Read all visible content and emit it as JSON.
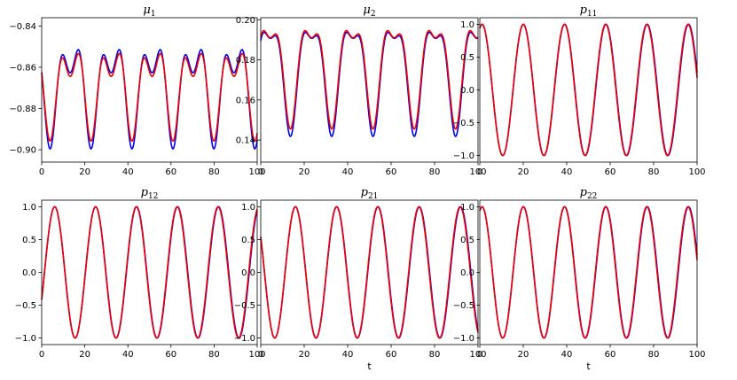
{
  "colors": {
    "series_blue": "#0000ee",
    "series_red": "#ee0000"
  },
  "chart_data": [
    {
      "type": "line",
      "title": "μ1",
      "title_main": "μ",
      "title_sub": "1",
      "xlabel": "",
      "xlim": [
        0,
        100
      ],
      "ylim": [
        -0.906,
        -0.836
      ],
      "xticks": [
        0,
        20,
        40,
        60,
        80,
        100
      ],
      "yticks": [
        -0.9,
        -0.88,
        -0.86,
        -0.84
      ],
      "ytick_labels": [
        "−0.90",
        "−0.88",
        "−0.86",
        "−0.84"
      ],
      "model": {
        "kind": "sum",
        "c": -0.8686,
        "a1": 0.0185,
        "p1": 19.0,
        "ph1": 1.8,
        "a2": 0.0125,
        "p2": 9.5,
        "ph2": 0.6
      },
      "series": [
        {
          "color": "#0000ee",
          "amp_scale": [
            1.0,
            1.0
          ],
          "drift": 0.0
        },
        {
          "color": "#ee0000",
          "amp_scale": [
            0.85,
            0.92
          ],
          "drift": 0.0
        }
      ]
    },
    {
      "type": "line",
      "title": "μ2",
      "title_main": "μ",
      "title_sub": "2",
      "xlabel": "",
      "xlim": [
        0,
        100
      ],
      "ylim": [
        0.129,
        0.201
      ],
      "xticks": [
        0,
        20,
        40,
        60,
        80,
        100
      ],
      "yticks": [
        0.14,
        0.16,
        0.18,
        0.2
      ],
      "ytick_labels": [
        "0.14",
        "0.16",
        "0.18",
        "0.20"
      ],
      "model": {
        "kind": "sum",
        "c": 0.1755,
        "a1": 0.0245,
        "p1": 19.0,
        "ph1": -1.35,
        "a2": 0.0092,
        "p2": 9.5,
        "ph2": 0.35
      },
      "series": [
        {
          "color": "#0000ee",
          "amp_scale": [
            1.0,
            1.0
          ],
          "drift": 0.0
        },
        {
          "color": "#ee0000",
          "amp_scale": [
            0.93,
            1.0
          ],
          "drift": 0.002
        }
      ]
    },
    {
      "type": "line",
      "title": "p11",
      "title_main": "p",
      "title_sub": "11",
      "xlabel": "",
      "xlim": [
        0,
        100
      ],
      "ylim": [
        -1.1,
        1.1
      ],
      "xticks": [
        0,
        20,
        40,
        60,
        80,
        100
      ],
      "yticks": [
        -1.0,
        -0.5,
        0.0,
        0.5,
        1.0
      ],
      "ytick_labels": [
        "−1.0",
        "−0.5",
        "0.0",
        "0.5",
        "1.0"
      ],
      "model": {
        "kind": "cos",
        "period": 19.0,
        "phase": -0.35
      },
      "series": [
        {
          "color": "#0000ee",
          "phase_shift": 0.0
        },
        {
          "color": "#ee0000",
          "phase_shift": 0.012
        }
      ]
    },
    {
      "type": "line",
      "title": "p12",
      "title_main": "p",
      "title_sub": "12",
      "xlabel": "",
      "xlim": [
        0,
        100
      ],
      "ylim": [
        -1.1,
        1.1
      ],
      "xticks": [
        0,
        20,
        40,
        60,
        80,
        100
      ],
      "yticks": [
        -1.0,
        -0.5,
        0.0,
        0.5,
        1.0
      ],
      "ytick_labels": [
        "−1.0",
        "−0.5",
        "0.0",
        "0.5",
        "1.0"
      ],
      "model": {
        "kind": "cos",
        "period": 19.0,
        "phase": -2.0
      },
      "series": [
        {
          "color": "#0000ee",
          "phase_shift": 0.0
        },
        {
          "color": "#ee0000",
          "phase_shift": 0.012
        }
      ]
    },
    {
      "type": "line",
      "title": "p21",
      "title_main": "p",
      "title_sub": "21",
      "xlabel": "t",
      "xlim": [
        0,
        100
      ],
      "ylim": [
        -1.1,
        1.1
      ],
      "xticks": [
        0,
        20,
        40,
        60,
        80,
        100
      ],
      "yticks": [
        -1.0,
        -0.5,
        0.0,
        0.5,
        1.0
      ],
      "ytick_labels": [
        "−1.0",
        "−0.5",
        "0.0",
        "0.5",
        "1.0"
      ],
      "model": {
        "kind": "cos",
        "period": 19.0,
        "phase": 1.0
      },
      "series": [
        {
          "color": "#0000ee",
          "phase_shift": 0.0
        },
        {
          "color": "#ee0000",
          "phase_shift": 0.012
        }
      ]
    },
    {
      "type": "line",
      "title": "p22",
      "title_main": "p",
      "title_sub": "22",
      "xlabel": "t",
      "xlim": [
        0,
        100
      ],
      "ylim": [
        -1.1,
        1.1
      ],
      "xticks": [
        0,
        20,
        40,
        60,
        80,
        100
      ],
      "yticks": [
        -1.0,
        -0.5,
        0.0,
        0.5,
        1.0
      ],
      "ytick_labels": [
        "−1.0",
        "−0.5",
        "0.0",
        "0.5",
        "1.0"
      ],
      "model": {
        "kind": "cos",
        "period": 19.0,
        "phase": -0.35
      },
      "series": [
        {
          "color": "#0000ee",
          "phase_shift": 0.0
        },
        {
          "color": "#ee0000",
          "phase_shift": 0.012
        }
      ]
    }
  ]
}
